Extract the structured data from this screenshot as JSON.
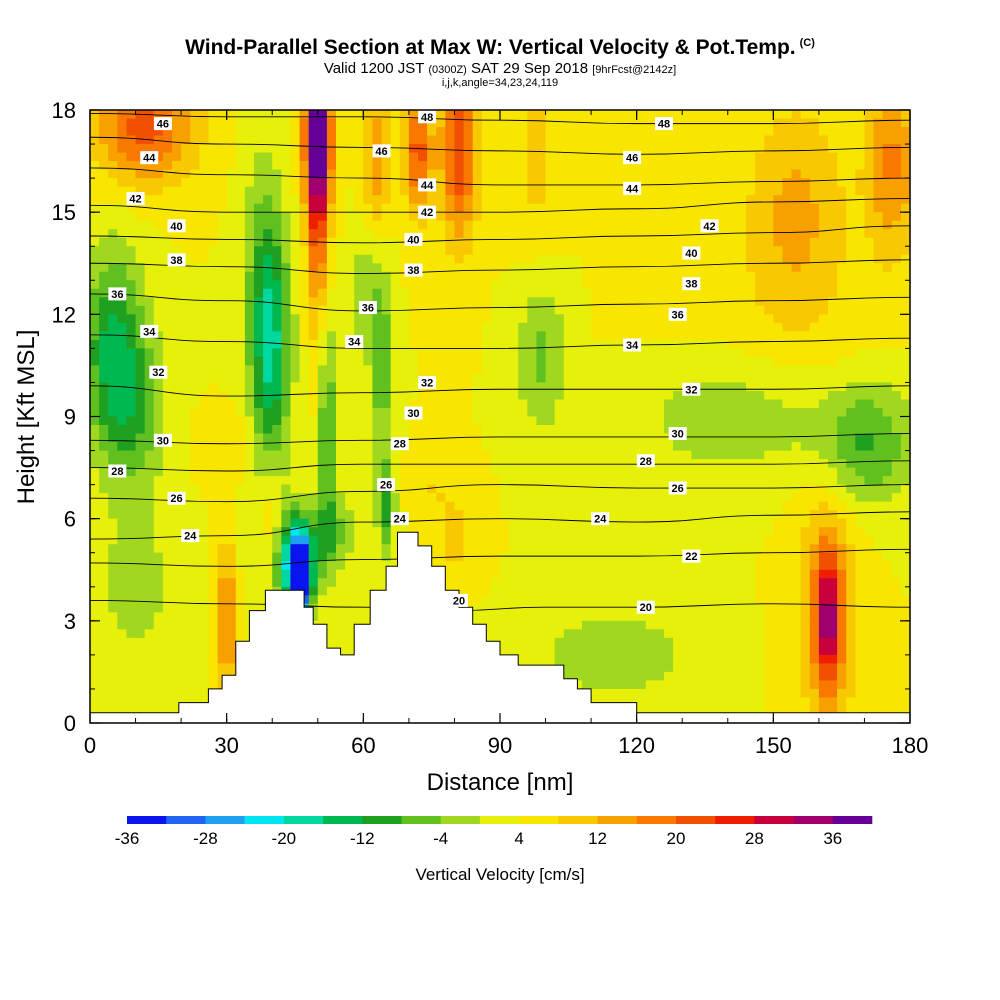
{
  "title": {
    "main": "Wind-Parallel Section at Max W: Vertical Velocity & Pot.Temp.",
    "copyright": "(C)",
    "valid_prefix": "Valid 1200 JST",
    "valid_utc": "(0300Z)",
    "valid_date": "SAT 29 Sep 2018",
    "forecast": "[9hrFcst@2142z]",
    "params": "i,j,k,angle=34,23,24,119"
  },
  "chart_data": {
    "type": "heatmap",
    "xlabel": "Distance [nm]",
    "ylabel": "Height [Kft MSL]",
    "xlim": [
      0,
      180
    ],
    "ylim": [
      0,
      18
    ],
    "x_ticks": [
      "0",
      "30",
      "60",
      "90",
      "120",
      "150",
      "180"
    ],
    "y_ticks": [
      "0",
      "3",
      "6",
      "9",
      "12",
      "15",
      "18"
    ],
    "colorbar": {
      "title": "Vertical Velocity [cm/s]",
      "levels": [
        -36,
        -32,
        -28,
        -24,
        -20,
        -16,
        -12,
        -8,
        -4,
        0,
        4,
        8,
        12,
        16,
        20,
        24,
        28,
        32,
        36,
        40
      ],
      "tick_labels": [
        "-36",
        "-28",
        "-20",
        "-12",
        "-4",
        "4",
        "12",
        "20",
        "28",
        "36"
      ],
      "colors": [
        "#0a14f0",
        "#1e64f0",
        "#1ea0f0",
        "#00e6f0",
        "#00d8a0",
        "#00b850",
        "#20a020",
        "#60c020",
        "#a0d820",
        "#e6f00a",
        "#f8e600",
        "#f8c800",
        "#f8a000",
        "#f87800",
        "#f05000",
        "#f01e00",
        "#c8003c",
        "#a0006e",
        "#640096"
      ]
    },
    "terrain_nm_kft": [
      [
        0,
        0.3
      ],
      [
        19.5,
        0.3
      ],
      [
        19.5,
        0.6
      ],
      [
        26,
        0.6
      ],
      [
        26,
        1
      ],
      [
        29,
        1
      ],
      [
        29,
        1.4
      ],
      [
        32,
        1.4
      ],
      [
        32,
        2.4
      ],
      [
        35,
        2.4
      ],
      [
        35,
        3.3
      ],
      [
        38.5,
        3.3
      ],
      [
        38.5,
        3.9
      ],
      [
        47,
        3.9
      ],
      [
        47,
        3.4
      ],
      [
        49,
        3.4
      ],
      [
        49,
        2.9
      ],
      [
        52,
        2.9
      ],
      [
        52,
        2.2
      ],
      [
        55,
        2.2
      ],
      [
        55,
        2
      ],
      [
        58,
        2
      ],
      [
        58,
        2.9
      ],
      [
        61.5,
        2.9
      ],
      [
        61.5,
        3.9
      ],
      [
        65,
        3.9
      ],
      [
        65,
        4.6
      ],
      [
        67.5,
        4.6
      ],
      [
        67.5,
        5.6
      ],
      [
        72,
        5.6
      ],
      [
        72,
        5.2
      ],
      [
        75,
        5.2
      ],
      [
        75,
        4.6
      ],
      [
        78,
        4.6
      ],
      [
        78,
        3.9
      ],
      [
        81,
        3.9
      ],
      [
        81,
        3.4
      ],
      [
        84,
        3.4
      ],
      [
        84,
        2.9
      ],
      [
        87,
        2.9
      ],
      [
        87,
        2.4
      ],
      [
        90,
        2.4
      ],
      [
        90,
        2
      ],
      [
        94,
        2
      ],
      [
        94,
        1.7
      ],
      [
        104,
        1.7
      ],
      [
        104,
        1.3
      ],
      [
        107,
        1.3
      ],
      [
        107,
        1
      ],
      [
        110,
        1
      ],
      [
        110,
        0.6
      ],
      [
        120,
        0.6
      ],
      [
        120,
        0.3
      ],
      [
        181,
        0.3
      ],
      [
        181,
        0
      ],
      [
        0,
        0
      ]
    ],
    "theta_contours": [
      {
        "label": "20",
        "x": [
          0,
          30,
          60,
          80,
          100,
          120,
          150,
          180
        ],
        "y": [
          3.6,
          3.5,
          3.4,
          3.3,
          3.4,
          3.4,
          3.5,
          3.4
        ]
      },
      {
        "label": "22",
        "x": [
          0,
          30,
          60,
          90,
          120,
          150,
          180
        ],
        "y": [
          4.7,
          4.6,
          4.8,
          4.9,
          4.9,
          5.0,
          5.1
        ]
      },
      {
        "label": "24",
        "x": [
          0,
          30,
          60,
          90,
          120,
          150,
          180
        ],
        "y": [
          5.4,
          5.5,
          5.9,
          6.0,
          5.9,
          6.1,
          6.2
        ]
      },
      {
        "label": "26",
        "x": [
          0,
          30,
          60,
          90,
          120,
          150,
          180
        ],
        "y": [
          6.6,
          6.5,
          6.8,
          7.0,
          6.9,
          6.9,
          7.0
        ]
      },
      {
        "label": "28",
        "x": [
          0,
          30,
          60,
          90,
          120,
          150,
          180
        ],
        "y": [
          7.5,
          7.4,
          7.6,
          7.6,
          7.6,
          7.6,
          7.7
        ]
      },
      {
        "label": "30",
        "x": [
          0,
          30,
          60,
          90,
          120,
          150,
          180
        ],
        "y": [
          8.3,
          8.2,
          8.3,
          8.4,
          8.4,
          8.4,
          8.5
        ]
      },
      {
        "label": "32",
        "x": [
          0,
          30,
          60,
          90,
          120,
          150,
          180
        ],
        "y": [
          9.9,
          9.6,
          9.7,
          9.8,
          9.8,
          9.8,
          9.9
        ]
      },
      {
        "label": "34",
        "x": [
          0,
          30,
          60,
          90,
          120,
          150,
          180
        ],
        "y": [
          11.4,
          11.2,
          11.0,
          11.0,
          11.1,
          11.2,
          11.3
        ]
      },
      {
        "label": "36",
        "x": [
          0,
          30,
          60,
          90,
          120,
          150,
          180
        ],
        "y": [
          12.6,
          12.4,
          12.1,
          12.2,
          12.3,
          12.4,
          12.5
        ]
      },
      {
        "label": "38",
        "x": [
          0,
          30,
          60,
          90,
          120,
          150,
          180
        ],
        "y": [
          13.5,
          13.4,
          13.2,
          13.3,
          13.4,
          13.5,
          13.6
        ]
      },
      {
        "label": "40",
        "x": [
          0,
          30,
          60,
          90,
          120,
          150,
          180
        ],
        "y": [
          14.3,
          14.2,
          14.1,
          14.2,
          14.3,
          14.4,
          14.6
        ]
      },
      {
        "label": "42",
        "x": [
          0,
          30,
          60,
          90,
          120,
          150,
          180
        ],
        "y": [
          15.2,
          15.0,
          15.0,
          15.0,
          15.1,
          15.3,
          15.4
        ]
      },
      {
        "label": "44",
        "x": [
          0,
          30,
          60,
          90,
          120,
          150,
          180
        ],
        "y": [
          16.3,
          16.1,
          16.0,
          15.8,
          15.8,
          15.9,
          16.0
        ]
      },
      {
        "label": "46",
        "x": [
          0,
          30,
          60,
          90,
          120,
          150,
          180
        ],
        "y": [
          17.2,
          17.0,
          16.9,
          16.8,
          16.7,
          16.8,
          16.9
        ]
      },
      {
        "label": "48",
        "x": [
          0,
          30,
          60,
          90,
          120,
          150,
          180
        ],
        "y": [
          17.9,
          17.8,
          17.8,
          17.7,
          17.6,
          17.6,
          17.7
        ]
      }
    ],
    "theta_labels": [
      {
        "text": "46",
        "x": 16,
        "y": 17.6
      },
      {
        "text": "44",
        "x": 13,
        "y": 16.6
      },
      {
        "text": "42",
        "x": 10,
        "y": 15.4
      },
      {
        "text": "40",
        "x": 19,
        "y": 14.6
      },
      {
        "text": "38",
        "x": 19,
        "y": 13.6
      },
      {
        "text": "36",
        "x": 6,
        "y": 12.6
      },
      {
        "text": "34",
        "x": 13,
        "y": 11.5
      },
      {
        "text": "32",
        "x": 15,
        "y": 10.3
      },
      {
        "text": "30",
        "x": 16,
        "y": 8.3
      },
      {
        "text": "28",
        "x": 6,
        "y": 7.4
      },
      {
        "text": "26",
        "x": 19,
        "y": 6.6
      },
      {
        "text": "24",
        "x": 22,
        "y": 5.5
      },
      {
        "text": "48",
        "x": 74,
        "y": 17.8
      },
      {
        "text": "46",
        "x": 64,
        "y": 16.8
      },
      {
        "text": "44",
        "x": 74,
        "y": 15.8
      },
      {
        "text": "42",
        "x": 74,
        "y": 15.0
      },
      {
        "text": "40",
        "x": 71,
        "y": 14.2
      },
      {
        "text": "38",
        "x": 71,
        "y": 13.3
      },
      {
        "text": "36",
        "x": 61,
        "y": 12.2
      },
      {
        "text": "34",
        "x": 58,
        "y": 11.2
      },
      {
        "text": "32",
        "x": 74,
        "y": 10.0
      },
      {
        "text": "30",
        "x": 71,
        "y": 9.1
      },
      {
        "text": "28",
        "x": 68,
        "y": 8.2
      },
      {
        "text": "26",
        "x": 65,
        "y": 7.0
      },
      {
        "text": "24",
        "x": 68,
        "y": 6.0
      },
      {
        "text": "20",
        "x": 81,
        "y": 3.6
      },
      {
        "text": "48",
        "x": 126,
        "y": 17.6
      },
      {
        "text": "46",
        "x": 119,
        "y": 16.6
      },
      {
        "text": "44",
        "x": 119,
        "y": 15.7
      },
      {
        "text": "42",
        "x": 136,
        "y": 14.6
      },
      {
        "text": "40",
        "x": 132,
        "y": 13.8
      },
      {
        "text": "38",
        "x": 132,
        "y": 12.9
      },
      {
        "text": "36",
        "x": 129,
        "y": 12.0
      },
      {
        "text": "34",
        "x": 119,
        "y": 11.1
      },
      {
        "text": "32",
        "x": 132,
        "y": 9.8
      },
      {
        "text": "30",
        "x": 129,
        "y": 8.5
      },
      {
        "text": "28",
        "x": 122,
        "y": 7.7
      },
      {
        "text": "26",
        "x": 129,
        "y": 6.9
      },
      {
        "text": "24",
        "x": 112,
        "y": 6.0
      },
      {
        "text": "22",
        "x": 132,
        "y": 4.9
      },
      {
        "text": "20",
        "x": 122,
        "y": 3.4
      }
    ],
    "w_field": {
      "background": 4,
      "blobs": [
        {
          "x": 50,
          "y": 17.2,
          "rx": 3.2,
          "ry": 2.4,
          "v": 38
        },
        {
          "x": 50,
          "y": 15.0,
          "rx": 2.6,
          "ry": 4.0,
          "v": 22
        },
        {
          "x": 81,
          "y": 16.8,
          "rx": 4.5,
          "ry": 2.8,
          "v": 26
        },
        {
          "x": 72,
          "y": 16.8,
          "rx": 3.2,
          "ry": 2.0,
          "v": 24
        },
        {
          "x": 63,
          "y": 16.5,
          "rx": 3.0,
          "ry": 2.5,
          "v": 16
        },
        {
          "x": 12,
          "y": 17.5,
          "rx": 12,
          "ry": 1.8,
          "v": 24
        },
        {
          "x": 176,
          "y": 16.5,
          "rx": 6,
          "ry": 3.0,
          "v": 18
        },
        {
          "x": 155,
          "y": 15.0,
          "rx": 12,
          "ry": 3.5,
          "v": 14
        },
        {
          "x": 98,
          "y": 16.5,
          "rx": 6,
          "ry": 3,
          "v": 10
        },
        {
          "x": 5,
          "y": 11.0,
          "rx": 7,
          "ry": 3.2,
          "v": -14
        },
        {
          "x": 10,
          "y": 9.0,
          "rx": 8,
          "ry": 3.0,
          "v": -6
        },
        {
          "x": 40,
          "y": 10.8,
          "rx": 4.5,
          "ry": 3.8,
          "v": -14
        },
        {
          "x": 38,
          "y": 12.8,
          "rx": 5,
          "ry": 4.5,
          "v": -6
        },
        {
          "x": 52,
          "y": 9.0,
          "rx": 2.0,
          "ry": 3.5,
          "v": -10
        },
        {
          "x": 64,
          "y": 10.5,
          "rx": 2.5,
          "ry": 3.5,
          "v": -8
        },
        {
          "x": 99,
          "y": 10.8,
          "rx": 6,
          "ry": 2.5,
          "v": -6
        },
        {
          "x": 170,
          "y": 8.2,
          "rx": 12,
          "ry": 2.0,
          "v": -10
        },
        {
          "x": 140,
          "y": 9.0,
          "rx": 22,
          "ry": 2.0,
          "v": -4
        },
        {
          "x": 60,
          "y": 12.5,
          "rx": 4,
          "ry": 2.0,
          "v": -4
        },
        {
          "x": 115,
          "y": 2.0,
          "rx": 20,
          "ry": 1.5,
          "v": -4
        },
        {
          "x": 10,
          "y": 4.0,
          "rx": 8,
          "ry": 2.0,
          "v": -4
        },
        {
          "x": 46,
          "y": 4.2,
          "rx": 2.5,
          "ry": 1.3,
          "v": -36
        },
        {
          "x": 45,
          "y": 4.8,
          "rx": 5,
          "ry": 1.5,
          "v": -22
        },
        {
          "x": 53,
          "y": 5.6,
          "rx": 5,
          "ry": 1.3,
          "v": -8
        },
        {
          "x": 65,
          "y": 6.3,
          "rx": 2.0,
          "ry": 1.5,
          "v": -10
        },
        {
          "x": 162,
          "y": 3.0,
          "rx": 3.0,
          "ry": 2.2,
          "v": 28
        },
        {
          "x": 162,
          "y": 3.5,
          "rx": 7.5,
          "ry": 4.0,
          "v": 16
        },
        {
          "x": 30,
          "y": 3.0,
          "rx": 1.5,
          "ry": 2.5,
          "v": 24
        },
        {
          "x": 40,
          "y": 6.0,
          "rx": 2.5,
          "ry": 1.5,
          "v": 12
        },
        {
          "x": 80,
          "y": 5.5,
          "rx": 5,
          "ry": 1.5,
          "v": 10
        },
        {
          "x": 30,
          "y": 8.2,
          "rx": 8,
          "ry": 1.0,
          "v": 8
        },
        {
          "x": 75,
          "y": 7.0,
          "rx": 4,
          "ry": 1.0,
          "v": 8
        },
        {
          "x": 150,
          "y": 11.5,
          "rx": 30,
          "ry": 3.0,
          "v": 6
        }
      ]
    }
  }
}
